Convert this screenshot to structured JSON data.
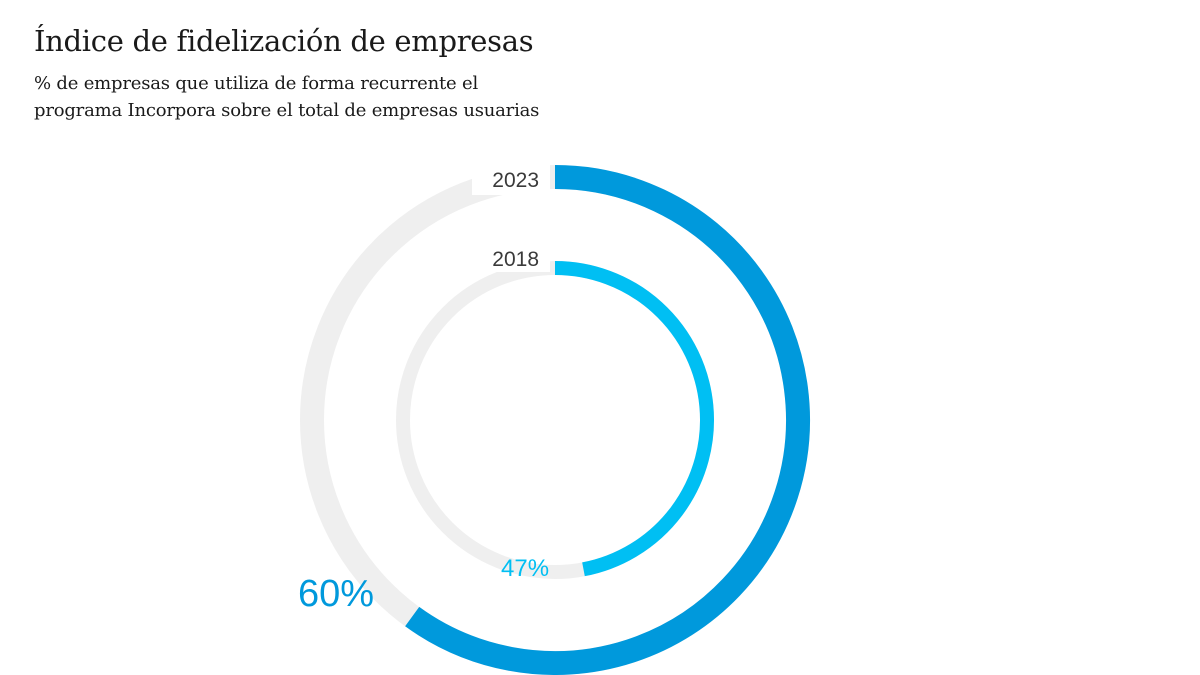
{
  "header": {
    "title": "Índice de fidelización de empresas",
    "subtitle_line1": "% de empresas que utiliza de forma recurrente el",
    "subtitle_line2": "programa Incorpora sobre el total de empresas usuarias"
  },
  "colors": {
    "track": "#efefef",
    "outer": "#0099dc",
    "inner": "#00bff3",
    "text": "#3a3a3a"
  },
  "chart_data": {
    "type": "radial-bar",
    "title": "Índice de fidelización de empresas",
    "unit": "%",
    "max": 100,
    "series": [
      {
        "name": "2023",
        "value": 60,
        "label": "60%",
        "ring": "outer"
      },
      {
        "name": "2018",
        "value": 47,
        "label": "47%",
        "ring": "inner"
      }
    ]
  }
}
